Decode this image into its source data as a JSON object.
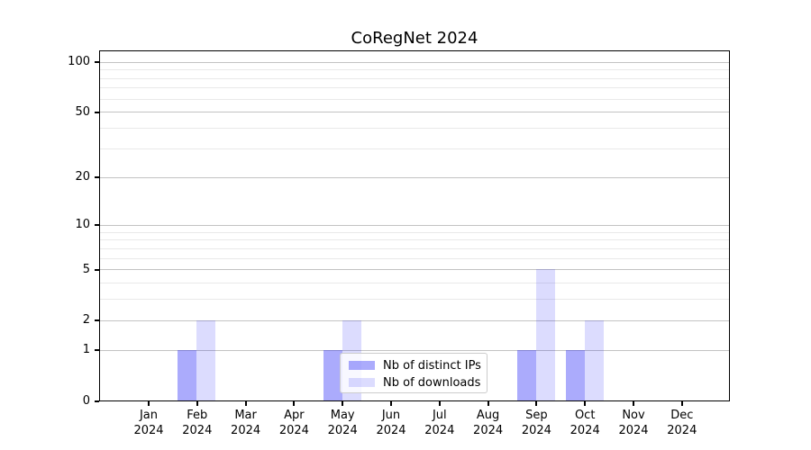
{
  "title": "CoRegNet 2024",
  "chart_data": {
    "type": "bar",
    "title": "CoRegNet 2024",
    "categories": [
      "Jan 2024",
      "Feb 2024",
      "Mar 2024",
      "Apr 2024",
      "May 2024",
      "Jun 2024",
      "Jul 2024",
      "Aug 2024",
      "Sep 2024",
      "Oct 2024",
      "Nov 2024",
      "Dec 2024"
    ],
    "series": [
      {
        "name": "Nb of distinct IPs",
        "color": "rgba(10,10,245,0.34)",
        "values": [
          0,
          1,
          0,
          0,
          1,
          0,
          0,
          0,
          1,
          1,
          0,
          0
        ]
      },
      {
        "name": "Nb of downloads",
        "color": "rgba(10,10,245,0.14)",
        "values": [
          0,
          2,
          0,
          0,
          2,
          0,
          0,
          0,
          5,
          2,
          0,
          0
        ]
      }
    ],
    "xlabel": "",
    "ylabel": "",
    "y_scale": "log1p",
    "y_ticks_major": [
      0,
      1,
      2,
      5,
      10,
      20,
      50,
      100
    ],
    "y_ticks_minor": [
      3,
      4,
      6,
      7,
      8,
      9,
      30,
      40,
      60,
      70,
      80,
      90
    ],
    "ylim": [
      0,
      115
    ],
    "grid": true,
    "legend_position": "lower-center-inside"
  },
  "legend": {
    "items": [
      {
        "label": "Nb of distinct IPs",
        "color": "rgba(10,10,245,0.34)"
      },
      {
        "label": "Nb of downloads",
        "color": "rgba(10,10,245,0.14)"
      }
    ]
  },
  "colors": {
    "background": "#ffffff",
    "axis": "#000000",
    "text": "#000000",
    "grid_major": "#c3c3c3",
    "grid_minor": "#e9e9e9",
    "legend_border": "#cccccc",
    "legend_bg": "rgba(255,255,255,0.8)",
    "bar_ips_hex_on_white": "#acacf9",
    "bar_downloads_hex_on_white": "#dcdcfa"
  }
}
